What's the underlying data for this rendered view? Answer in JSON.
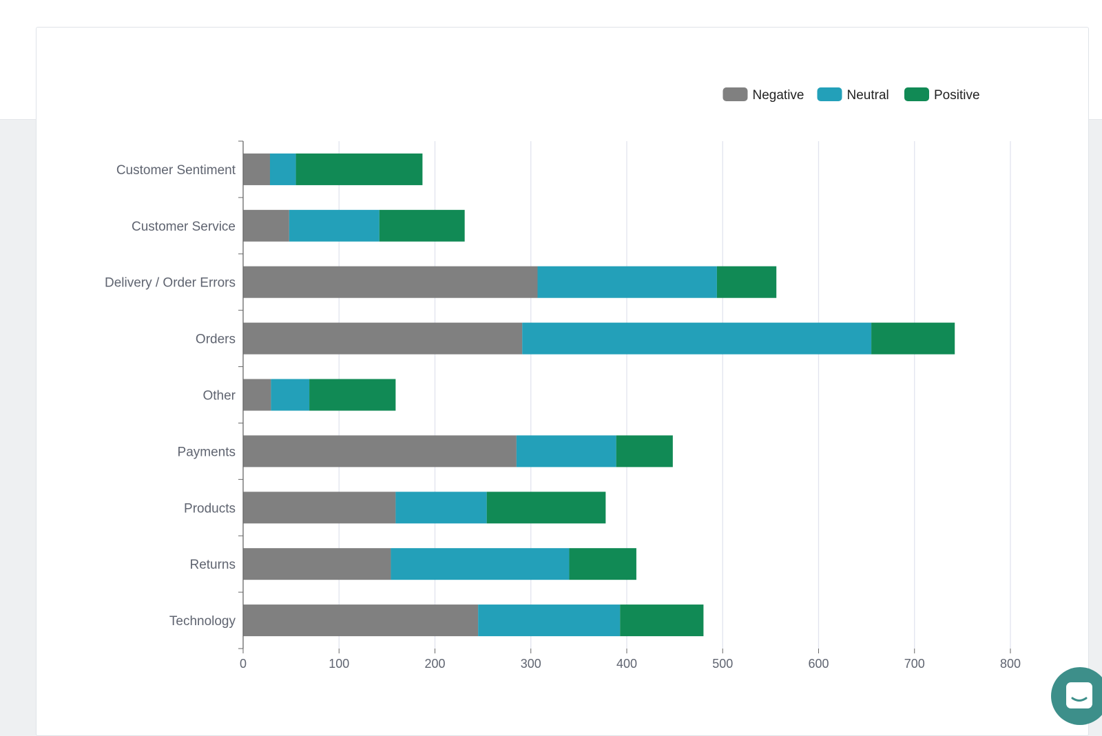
{
  "colors": {
    "negative": "#808080",
    "neutral": "#23a0b9",
    "positive": "#118a55",
    "gridline": "#e1e3ee",
    "axis": "#666666",
    "launcher": "#3d8f8a"
  },
  "chat_launcher": {
    "icon": "chat-bubble-icon"
  },
  "chart_data": {
    "type": "bar",
    "orientation": "horizontal",
    "stacked": true,
    "title": "",
    "xlabel": "",
    "ylabel": "",
    "xlim": [
      0,
      800
    ],
    "x_ticks": [
      "0",
      "100",
      "200",
      "300",
      "400",
      "500",
      "600",
      "700",
      "800"
    ],
    "grid": true,
    "legend_position": "top-right",
    "categories": [
      "Customer Sentiment",
      "Customer Service",
      "Delivery / Order Errors",
      "Orders",
      "Other",
      "Payments",
      "Products",
      "Returns",
      "Technology"
    ],
    "series": [
      {
        "name": "Negative",
        "color_key": "negative",
        "values": [
          28,
          48,
          307,
          291,
          29,
          285,
          159,
          154,
          245
        ]
      },
      {
        "name": "Neutral",
        "color_key": "neutral",
        "values": [
          27,
          94,
          187,
          364,
          40,
          104,
          95,
          186,
          148
        ]
      },
      {
        "name": "Positive",
        "color_key": "positive",
        "values": [
          132,
          89,
          62,
          87,
          90,
          59,
          124,
          70,
          87
        ]
      }
    ]
  }
}
